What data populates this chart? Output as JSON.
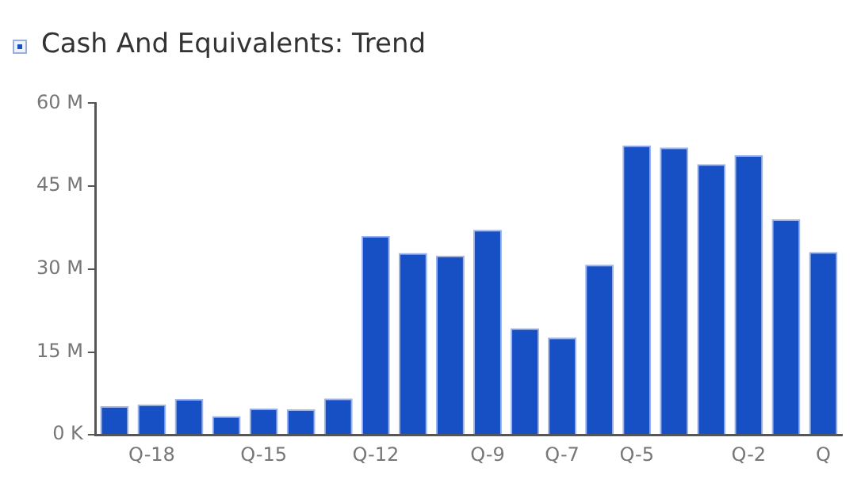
{
  "chart_data": {
    "type": "bar",
    "title": "Cash And Equivalents: Trend",
    "categories": [
      null,
      "Q-18",
      null,
      null,
      "Q-15",
      null,
      null,
      "Q-12",
      null,
      null,
      "Q-9",
      null,
      "Q-7",
      null,
      "Q-5",
      null,
      null,
      "Q-2",
      null,
      "Q"
    ],
    "values": [
      5.2,
      5.5,
      6.5,
      3.4,
      4.8,
      4.6,
      6.6,
      36.0,
      32.9,
      32.4,
      37.1,
      19.3,
      17.6,
      30.8,
      52.4,
      52.0,
      49.0,
      50.6,
      39.0,
      33.1
    ],
    "color": "#1750c4",
    "ylim": [
      0,
      60
    ],
    "yticks": [
      {
        "value": 0,
        "label": "0 K"
      },
      {
        "value": 15,
        "label": "15 M"
      },
      {
        "value": 30,
        "label": "30 M"
      },
      {
        "value": 45,
        "label": "45 M"
      },
      {
        "value": 60,
        "label": "60 M"
      }
    ],
    "grid": false,
    "legend": false
  }
}
